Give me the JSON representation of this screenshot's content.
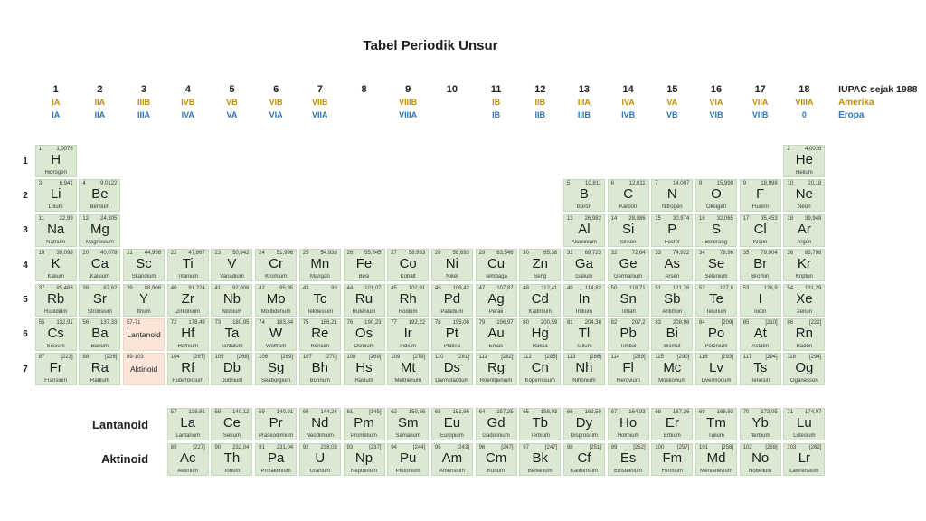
{
  "title": "Tabel Periodik Unsur",
  "header": {
    "legend": {
      "iupac": "IUPAC sejak 1988",
      "amerika": "Amerika",
      "eropa": "Eropa"
    },
    "groups": [
      {
        "n": "1",
        "us": "IA",
        "eu": "IA"
      },
      {
        "n": "2",
        "us": "IIA",
        "eu": "IIA"
      },
      {
        "n": "3",
        "us": "IIIB",
        "eu": "IIIA"
      },
      {
        "n": "4",
        "us": "IVB",
        "eu": "IVA"
      },
      {
        "n": "5",
        "us": "VB",
        "eu": "VA"
      },
      {
        "n": "6",
        "us": "VIB",
        "eu": "VIA"
      },
      {
        "n": "7",
        "us": "VIIB",
        "eu": "VIIA"
      },
      {
        "n": "8",
        "us": "",
        "eu": ""
      },
      {
        "n": "9",
        "us": "VIIIB",
        "eu": "VIIIA"
      },
      {
        "n": "10",
        "us": "",
        "eu": ""
      },
      {
        "n": "11",
        "us": "IB",
        "eu": "IB"
      },
      {
        "n": "12",
        "us": "IIB",
        "eu": "IIB"
      },
      {
        "n": "13",
        "us": "IIIA",
        "eu": "IIIB"
      },
      {
        "n": "14",
        "us": "IVA",
        "eu": "IVB"
      },
      {
        "n": "15",
        "us": "VA",
        "eu": "VB"
      },
      {
        "n": "16",
        "us": "VIA",
        "eu": "VIB"
      },
      {
        "n": "17",
        "us": "VIIA",
        "eu": "VIIB"
      },
      {
        "n": "18",
        "us": "VIIIA",
        "eu": "0"
      }
    ]
  },
  "periods": [
    "1",
    "2",
    "3",
    "4",
    "5",
    "6",
    "7"
  ],
  "series_labels": [
    "Lantanoid",
    "Aktinoid"
  ],
  "placeholders": [
    {
      "range": "57-71",
      "label": "Lantanoid",
      "row": 6,
      "col": 3
    },
    {
      "range": "89-103",
      "label": "Aktinoid",
      "row": 7,
      "col": 3
    }
  ],
  "colors": {
    "element_bg": "#dbe8d2",
    "element_border": "#c6d9ba",
    "series_bg": "#fbe5d8",
    "series_border": "#f0d4c2",
    "amerika": "#bf8f00",
    "eropa": "#2e75b6"
  },
  "elements": [
    {
      "z": "1",
      "mass": "1,0078",
      "sym": "H",
      "name": "Hidrogen",
      "row": 1,
      "col": 1
    },
    {
      "z": "2",
      "mass": "4,0026",
      "sym": "He",
      "name": "Helium",
      "row": 1,
      "col": 18
    },
    {
      "z": "3",
      "mass": "6,941",
      "sym": "Li",
      "name": "Litium",
      "row": 2,
      "col": 1
    },
    {
      "z": "4",
      "mass": "9,0122",
      "sym": "Be",
      "name": "Berilium",
      "row": 2,
      "col": 2
    },
    {
      "z": "5",
      "mass": "10,811",
      "sym": "B",
      "name": "Boron",
      "row": 2,
      "col": 13
    },
    {
      "z": "6",
      "mass": "12,011",
      "sym": "C",
      "name": "Karbon",
      "row": 2,
      "col": 14
    },
    {
      "z": "7",
      "mass": "14,007",
      "sym": "N",
      "name": "Nitrogen",
      "row": 2,
      "col": 15
    },
    {
      "z": "8",
      "mass": "15,999",
      "sym": "O",
      "name": "Oksigen",
      "row": 2,
      "col": 16
    },
    {
      "z": "9",
      "mass": "18,998",
      "sym": "F",
      "name": "Fluorin",
      "row": 2,
      "col": 17
    },
    {
      "z": "10",
      "mass": "20,18",
      "sym": "Ne",
      "name": "Neon",
      "row": 2,
      "col": 18
    },
    {
      "z": "11",
      "mass": "22,99",
      "sym": "Na",
      "name": "Natrium",
      "row": 3,
      "col": 1
    },
    {
      "z": "12",
      "mass": "24,305",
      "sym": "Mg",
      "name": "Magnesium",
      "row": 3,
      "col": 2
    },
    {
      "z": "13",
      "mass": "26,982",
      "sym": "Al",
      "name": "Aluminium",
      "row": 3,
      "col": 13
    },
    {
      "z": "14",
      "mass": "28,086",
      "sym": "Si",
      "name": "Silikon",
      "row": 3,
      "col": 14
    },
    {
      "z": "15",
      "mass": "30,974",
      "sym": "P",
      "name": "Fosfor",
      "row": 3,
      "col": 15
    },
    {
      "z": "16",
      "mass": "32,065",
      "sym": "S",
      "name": "Belerang",
      "row": 3,
      "col": 16
    },
    {
      "z": "17",
      "mass": "35,453",
      "sym": "Cl",
      "name": "Klorin",
      "row": 3,
      "col": 17
    },
    {
      "z": "18",
      "mass": "39,948",
      "sym": "Ar",
      "name": "Argon",
      "row": 3,
      "col": 18
    },
    {
      "z": "19",
      "mass": "39,098",
      "sym": "K",
      "name": "Kalium",
      "row": 4,
      "col": 1
    },
    {
      "z": "20",
      "mass": "40,078",
      "sym": "Ca",
      "name": "Kalsium",
      "row": 4,
      "col": 2
    },
    {
      "z": "21",
      "mass": "44,956",
      "sym": "Sc",
      "name": "Skandium",
      "row": 4,
      "col": 3
    },
    {
      "z": "22",
      "mass": "47,867",
      "sym": "Ti",
      "name": "Titanium",
      "row": 4,
      "col": 4
    },
    {
      "z": "23",
      "mass": "50,942",
      "sym": "V",
      "name": "Vanadium",
      "row": 4,
      "col": 5
    },
    {
      "z": "24",
      "mass": "51,996",
      "sym": "Cr",
      "name": "Kromium",
      "row": 4,
      "col": 6
    },
    {
      "z": "25",
      "mass": "54,938",
      "sym": "Mn",
      "name": "Mangan",
      "row": 4,
      "col": 7
    },
    {
      "z": "26",
      "mass": "55,845",
      "sym": "Fe",
      "name": "Besi",
      "row": 4,
      "col": 8
    },
    {
      "z": "27",
      "mass": "58,933",
      "sym": "Co",
      "name": "Kobalt",
      "row": 4,
      "col": 9
    },
    {
      "z": "28",
      "mass": "58,693",
      "sym": "Ni",
      "name": "Nikel",
      "row": 4,
      "col": 10
    },
    {
      "z": "29",
      "mass": "63,546",
      "sym": "Cu",
      "name": "Tembaga",
      "row": 4,
      "col": 11
    },
    {
      "z": "30",
      "mass": "65,38",
      "sym": "Zn",
      "name": "Seng",
      "row": 4,
      "col": 12
    },
    {
      "z": "31",
      "mass": "69,723",
      "sym": "Ga",
      "name": "Galium",
      "row": 4,
      "col": 13
    },
    {
      "z": "32",
      "mass": "72,64",
      "sym": "Ge",
      "name": "Germanium",
      "row": 4,
      "col": 14
    },
    {
      "z": "33",
      "mass": "74,922",
      "sym": "As",
      "name": "Arsen",
      "row": 4,
      "col": 15
    },
    {
      "z": "34",
      "mass": "78,96",
      "sym": "Se",
      "name": "Selenium",
      "row": 4,
      "col": 16
    },
    {
      "z": "35",
      "mass": "79,904",
      "sym": "Br",
      "name": "Bromin",
      "row": 4,
      "col": 17
    },
    {
      "z": "36",
      "mass": "83,798",
      "sym": "Kr",
      "name": "Kripton",
      "row": 4,
      "col": 18
    },
    {
      "z": "37",
      "mass": "85,468",
      "sym": "Rb",
      "name": "Rubidium",
      "row": 5,
      "col": 1
    },
    {
      "z": "38",
      "mass": "87,62",
      "sym": "Sr",
      "name": "Stronsium",
      "row": 5,
      "col": 2
    },
    {
      "z": "39",
      "mass": "88,906",
      "sym": "Y",
      "name": "Itrium",
      "row": 5,
      "col": 3
    },
    {
      "z": "40",
      "mass": "91,224",
      "sym": "Zr",
      "name": "Zirkonium",
      "row": 5,
      "col": 4
    },
    {
      "z": "41",
      "mass": "92,906",
      "sym": "Nb",
      "name": "Niobium",
      "row": 5,
      "col": 5
    },
    {
      "z": "42",
      "mass": "95,95",
      "sym": "Mo",
      "name": "Molibdenum",
      "row": 5,
      "col": 6
    },
    {
      "z": "43",
      "mass": "98",
      "sym": "Tc",
      "name": "Teknesium",
      "row": 5,
      "col": 7
    },
    {
      "z": "44",
      "mass": "101,07",
      "sym": "Ru",
      "name": "Rutenium",
      "row": 5,
      "col": 8
    },
    {
      "z": "45",
      "mass": "102,91",
      "sym": "Rh",
      "name": "Rodium",
      "row": 5,
      "col": 9
    },
    {
      "z": "46",
      "mass": "106,42",
      "sym": "Pd",
      "name": "Paladium",
      "row": 5,
      "col": 10
    },
    {
      "z": "47",
      "mass": "107,87",
      "sym": "Ag",
      "name": "Perak",
      "row": 5,
      "col": 11
    },
    {
      "z": "48",
      "mass": "112,41",
      "sym": "Cd",
      "name": "Kadmium",
      "row": 5,
      "col": 12
    },
    {
      "z": "49",
      "mass": "114,82",
      "sym": "In",
      "name": "Indium",
      "row": 5,
      "col": 13
    },
    {
      "z": "50",
      "mass": "118,71",
      "sym": "Sn",
      "name": "Timah",
      "row": 5,
      "col": 14
    },
    {
      "z": "51",
      "mass": "121,76",
      "sym": "Sb",
      "name": "Antimon",
      "row": 5,
      "col": 15
    },
    {
      "z": "52",
      "mass": "127,6",
      "sym": "Te",
      "name": "Telurium",
      "row": 5,
      "col": 16
    },
    {
      "z": "53",
      "mass": "126,9",
      "sym": "I",
      "name": "Iodin",
      "row": 5,
      "col": 17
    },
    {
      "z": "54",
      "mass": "131,29",
      "sym": "Xe",
      "name": "Xenon",
      "row": 5,
      "col": 18
    },
    {
      "z": "55",
      "mass": "132,91",
      "sym": "Cs",
      "name": "Sesium",
      "row": 6,
      "col": 1
    },
    {
      "z": "56",
      "mass": "137,33",
      "sym": "Ba",
      "name": "Barium",
      "row": 6,
      "col": 2
    },
    {
      "z": "72",
      "mass": "178,49",
      "sym": "Hf",
      "name": "Hafnium",
      "row": 6,
      "col": 4
    },
    {
      "z": "73",
      "mass": "180,95",
      "sym": "Ta",
      "name": "Tantalum",
      "row": 6,
      "col": 5
    },
    {
      "z": "74",
      "mass": "183,84",
      "sym": "W",
      "name": "Wolfram",
      "row": 6,
      "col": 6
    },
    {
      "z": "75",
      "mass": "186,21",
      "sym": "Re",
      "name": "Renium",
      "row": 6,
      "col": 7
    },
    {
      "z": "76",
      "mass": "190,23",
      "sym": "Os",
      "name": "Osmium",
      "row": 6,
      "col": 8
    },
    {
      "z": "77",
      "mass": "192,22",
      "sym": "Ir",
      "name": "Iridium",
      "row": 6,
      "col": 9
    },
    {
      "z": "78",
      "mass": "195,08",
      "sym": "Pt",
      "name": "Platina",
      "row": 6,
      "col": 10
    },
    {
      "z": "79",
      "mass": "196,97",
      "sym": "Au",
      "name": "Emas",
      "row": 6,
      "col": 11
    },
    {
      "z": "80",
      "mass": "200,59",
      "sym": "Hg",
      "name": "Raksa",
      "row": 6,
      "col": 12
    },
    {
      "z": "81",
      "mass": "204,38",
      "sym": "Tl",
      "name": "Talium",
      "row": 6,
      "col": 13
    },
    {
      "z": "82",
      "mass": "207,2",
      "sym": "Pb",
      "name": "Timbal",
      "row": 6,
      "col": 14
    },
    {
      "z": "83",
      "mass": "208,98",
      "sym": "Bi",
      "name": "Bismut",
      "row": 6,
      "col": 15
    },
    {
      "z": "84",
      "mass": "[209]",
      "sym": "Po",
      "name": "Polonium",
      "row": 6,
      "col": 16
    },
    {
      "z": "85",
      "mass": "[210]",
      "sym": "At",
      "name": "Astatin",
      "row": 6,
      "col": 17
    },
    {
      "z": "86",
      "mass": "[222]",
      "sym": "Rn",
      "name": "Radon",
      "row": 6,
      "col": 18
    },
    {
      "z": "87",
      "mass": "[223]",
      "sym": "Fr",
      "name": "Fransium",
      "row": 7,
      "col": 1
    },
    {
      "z": "88",
      "mass": "[226]",
      "sym": "Ra",
      "name": "Radium",
      "row": 7,
      "col": 2
    },
    {
      "z": "104",
      "mass": "[267]",
      "sym": "Rf",
      "name": "Ruterfordium",
      "row": 7,
      "col": 4
    },
    {
      "z": "105",
      "mass": "[268]",
      "sym": "Db",
      "name": "Dubnium",
      "row": 7,
      "col": 5
    },
    {
      "z": "106",
      "mass": "[269]",
      "sym": "Sg",
      "name": "Seaborgium",
      "row": 7,
      "col": 6
    },
    {
      "z": "107",
      "mass": "[270]",
      "sym": "Bh",
      "name": "Bohrium",
      "row": 7,
      "col": 7
    },
    {
      "z": "108",
      "mass": "[269]",
      "sym": "Hs",
      "name": "Hasium",
      "row": 7,
      "col": 8
    },
    {
      "z": "109",
      "mass": "[278]",
      "sym": "Mt",
      "name": "Meitnerium",
      "row": 7,
      "col": 9
    },
    {
      "z": "110",
      "mass": "[281]",
      "sym": "Ds",
      "name": "Darmstadtium",
      "row": 7,
      "col": 10
    },
    {
      "z": "111",
      "mass": "[282]",
      "sym": "Rg",
      "name": "Roentgenium",
      "row": 7,
      "col": 11
    },
    {
      "z": "112",
      "mass": "[285]",
      "sym": "Cn",
      "name": "Kopernisium",
      "row": 7,
      "col": 12
    },
    {
      "z": "113",
      "mass": "[286]",
      "sym": "Nh",
      "name": "Nihonium",
      "row": 7,
      "col": 13
    },
    {
      "z": "114",
      "mass": "[289]",
      "sym": "Fl",
      "name": "Flerovium",
      "row": 7,
      "col": 14
    },
    {
      "z": "115",
      "mass": "[290]",
      "sym": "Mc",
      "name": "Moskovium",
      "row": 7,
      "col": 15
    },
    {
      "z": "116",
      "mass": "[293]",
      "sym": "Lv",
      "name": "Livermorium",
      "row": 7,
      "col": 16
    },
    {
      "z": "117",
      "mass": "[294]",
      "sym": "Ts",
      "name": "Tenesin",
      "row": 7,
      "col": 17
    },
    {
      "z": "118",
      "mass": "[294]",
      "sym": "Og",
      "name": "Oganesson",
      "row": 7,
      "col": 18
    },
    {
      "z": "57",
      "mass": "138,91",
      "sym": "La",
      "name": "Lantanum",
      "row": 8,
      "col": 4
    },
    {
      "z": "58",
      "mass": "140,12",
      "sym": "Ce",
      "name": "Serium",
      "row": 8,
      "col": 5
    },
    {
      "z": "59",
      "mass": "140,91",
      "sym": "Pr",
      "name": "Praseodimium",
      "row": 8,
      "col": 6
    },
    {
      "z": "60",
      "mass": "144,24",
      "sym": "Nd",
      "name": "Neodimium",
      "row": 8,
      "col": 7
    },
    {
      "z": "61",
      "mass": "[145]",
      "sym": "Pm",
      "name": "Prometium",
      "row": 8,
      "col": 8
    },
    {
      "z": "62",
      "mass": "150,36",
      "sym": "Sm",
      "name": "Samarium",
      "row": 8,
      "col": 9
    },
    {
      "z": "63",
      "mass": "151,96",
      "sym": "Eu",
      "name": "Europium",
      "row": 8,
      "col": 10
    },
    {
      "z": "64",
      "mass": "157,25",
      "sym": "Gd",
      "name": "Gadolinium",
      "row": 8,
      "col": 11
    },
    {
      "z": "65",
      "mass": "158,93",
      "sym": "Tb",
      "name": "Terbium",
      "row": 8,
      "col": 12
    },
    {
      "z": "66",
      "mass": "162,50",
      "sym": "Dy",
      "name": "Disprosium",
      "row": 8,
      "col": 13
    },
    {
      "z": "67",
      "mass": "164,93",
      "sym": "Ho",
      "name": "Holmium",
      "row": 8,
      "col": 14
    },
    {
      "z": "68",
      "mass": "167,26",
      "sym": "Er",
      "name": "Erbium",
      "row": 8,
      "col": 15
    },
    {
      "z": "69",
      "mass": "168,93",
      "sym": "Tm",
      "name": "Tulium",
      "row": 8,
      "col": 16
    },
    {
      "z": "70",
      "mass": "173,05",
      "sym": "Yb",
      "name": "Iterbium",
      "row": 8,
      "col": 17
    },
    {
      "z": "71",
      "mass": "174,97",
      "sym": "Lu",
      "name": "Lutesium",
      "row": 8,
      "col": 18
    },
    {
      "z": "89",
      "mass": "[227]",
      "sym": "Ac",
      "name": "Aktinium",
      "row": 9,
      "col": 4
    },
    {
      "z": "90",
      "mass": "232,04",
      "sym": "Th",
      "name": "Torium",
      "row": 9,
      "col": 5
    },
    {
      "z": "91",
      "mass": "231,04",
      "sym": "Pa",
      "name": "Protaktinium",
      "row": 9,
      "col": 6
    },
    {
      "z": "92",
      "mass": "238,03",
      "sym": "U",
      "name": "Uranium",
      "row": 9,
      "col": 7
    },
    {
      "z": "93",
      "mass": "[237]",
      "sym": "Np",
      "name": "Neptunium",
      "row": 9,
      "col": 8
    },
    {
      "z": "94",
      "mass": "[244]",
      "sym": "Pu",
      "name": "Plutonium",
      "row": 9,
      "col": 9
    },
    {
      "z": "95",
      "mass": "[243]",
      "sym": "Am",
      "name": "Amerisium",
      "row": 9,
      "col": 10
    },
    {
      "z": "96",
      "mass": "[247]",
      "sym": "Cm",
      "name": "Kurium",
      "row": 9,
      "col": 11
    },
    {
      "z": "97",
      "mass": "[247]",
      "sym": "Bk",
      "name": "Berkelium",
      "row": 9,
      "col": 12
    },
    {
      "z": "98",
      "mass": "[251]",
      "sym": "Cf",
      "name": "Kalifornium",
      "row": 9,
      "col": 13
    },
    {
      "z": "99",
      "mass": "[252]",
      "sym": "Es",
      "name": "Einsteinium",
      "row": 9,
      "col": 14
    },
    {
      "z": "100",
      "mass": "[257]",
      "sym": "Fm",
      "name": "Fermium",
      "row": 9,
      "col": 15
    },
    {
      "z": "101",
      "mass": "[258]",
      "sym": "Md",
      "name": "Mendelevium",
      "row": 9,
      "col": 16
    },
    {
      "z": "102",
      "mass": "[259]",
      "sym": "No",
      "name": "Nobelium",
      "row": 9,
      "col": 17
    },
    {
      "z": "103",
      "mass": "[262]",
      "sym": "Lr",
      "name": "Lawrensium",
      "row": 9,
      "col": 18
    }
  ]
}
